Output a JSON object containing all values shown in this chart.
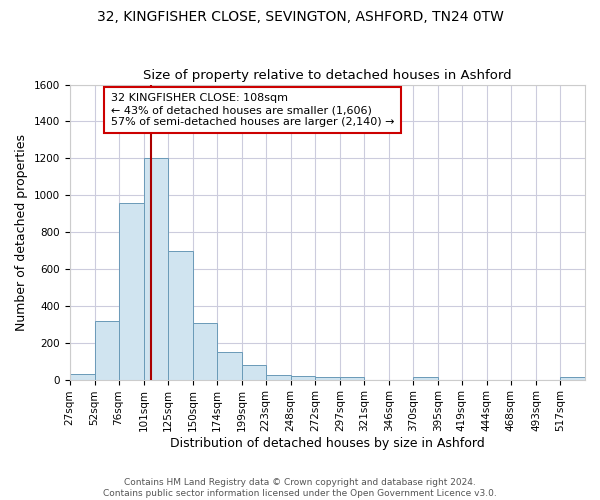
{
  "title": "32, KINGFISHER CLOSE, SEVINGTON, ASHFORD, TN24 0TW",
  "subtitle": "Size of property relative to detached houses in Ashford",
  "xlabel": "Distribution of detached houses by size in Ashford",
  "ylabel": "Number of detached properties",
  "bar_color": "#d0e4f0",
  "bar_edge_color": "#6a9ab8",
  "background_color": "#ffffff",
  "grid_color": "#ccccdd",
  "annotation_text": "32 KINGFISHER CLOSE: 108sqm\n← 43% of detached houses are smaller (1,606)\n57% of semi-detached houses are larger (2,140) →",
  "annotation_box_color": "#ffffff",
  "annotation_box_edge_color": "#cc0000",
  "redline_color": "#aa0000",
  "redline_x": 108,
  "categories": [
    "27sqm",
    "52sqm",
    "76sqm",
    "101sqm",
    "125sqm",
    "150sqm",
    "174sqm",
    "199sqm",
    "223sqm",
    "248sqm",
    "272sqm",
    "297sqm",
    "321sqm",
    "346sqm",
    "370sqm",
    "395sqm",
    "419sqm",
    "444sqm",
    "468sqm",
    "493sqm",
    "517sqm"
  ],
  "bin_edges": [
    27,
    52,
    76,
    101,
    125,
    150,
    174,
    199,
    223,
    248,
    272,
    297,
    321,
    346,
    370,
    395,
    419,
    444,
    468,
    493,
    517,
    542
  ],
  "values": [
    30,
    320,
    960,
    1200,
    695,
    305,
    150,
    78,
    25,
    18,
    15,
    14,
    0,
    0,
    13,
    0,
    0,
    0,
    0,
    0,
    13
  ],
  "ylim": [
    0,
    1600
  ],
  "yticks": [
    0,
    200,
    400,
    600,
    800,
    1000,
    1200,
    1400,
    1600
  ],
  "footer": "Contains HM Land Registry data © Crown copyright and database right 2024.\nContains public sector information licensed under the Open Government Licence v3.0.",
  "title_fontsize": 10,
  "subtitle_fontsize": 9.5,
  "axis_label_fontsize": 9,
  "tick_fontsize": 7.5,
  "annotation_fontsize": 8,
  "footer_fontsize": 6.5
}
